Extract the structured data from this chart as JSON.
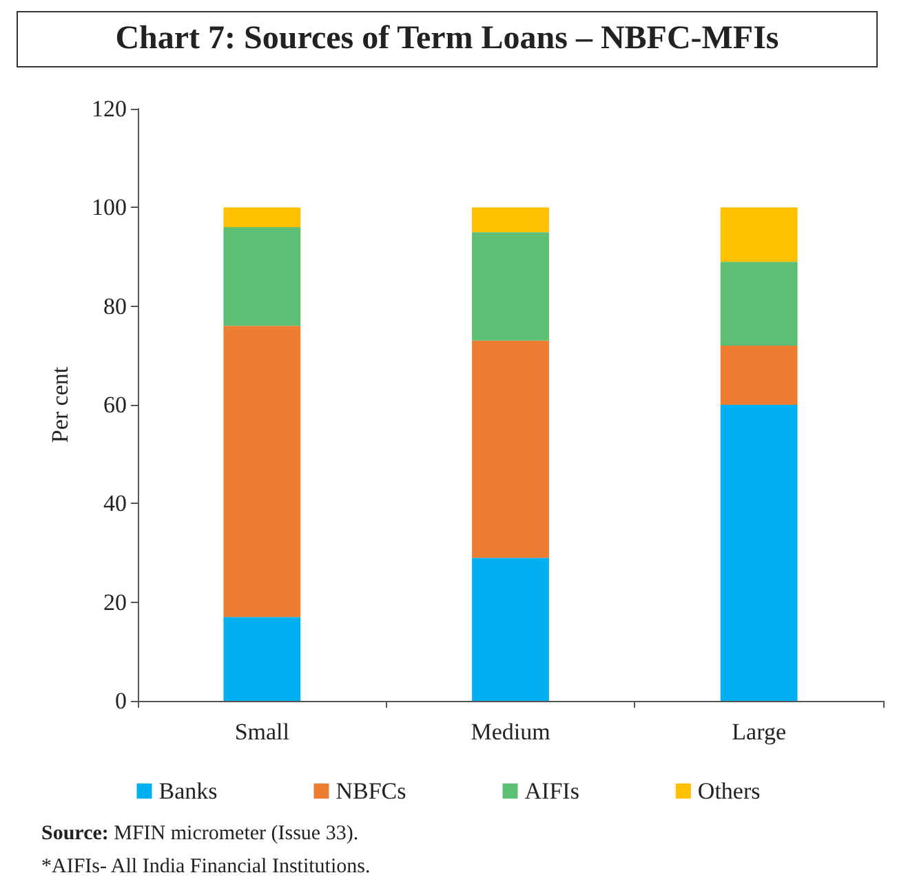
{
  "chart_data": {
    "type": "bar",
    "title": "Chart 7: Sources of Term Loans – NBFC-MFIs",
    "ylabel": "Per cent",
    "categories": [
      "Small",
      "Medium",
      "Large"
    ],
    "stacked": true,
    "series": [
      {
        "name": "Banks",
        "color": "#00b0f0",
        "values": [
          17,
          29,
          60
        ]
      },
      {
        "name": "NBFCs",
        "color": "#ed7d31",
        "values": [
          59,
          44,
          12
        ]
      },
      {
        "name": "AIFIs",
        "color": "#5cbf73",
        "values": [
          20,
          22,
          17
        ]
      },
      {
        "name": "Others",
        "color": "#ffc000",
        "values": [
          4,
          5,
          11
        ]
      }
    ],
    "ylim": [
      0,
      120
    ],
    "yticks": [
      0,
      20,
      40,
      60,
      80,
      100,
      120
    ],
    "grid": false,
    "legend": "bottom",
    "annotations": [
      "Source: MFIN micrometer (Issue 33).",
      "*AIFIs- All India Financial Institutions."
    ]
  }
}
